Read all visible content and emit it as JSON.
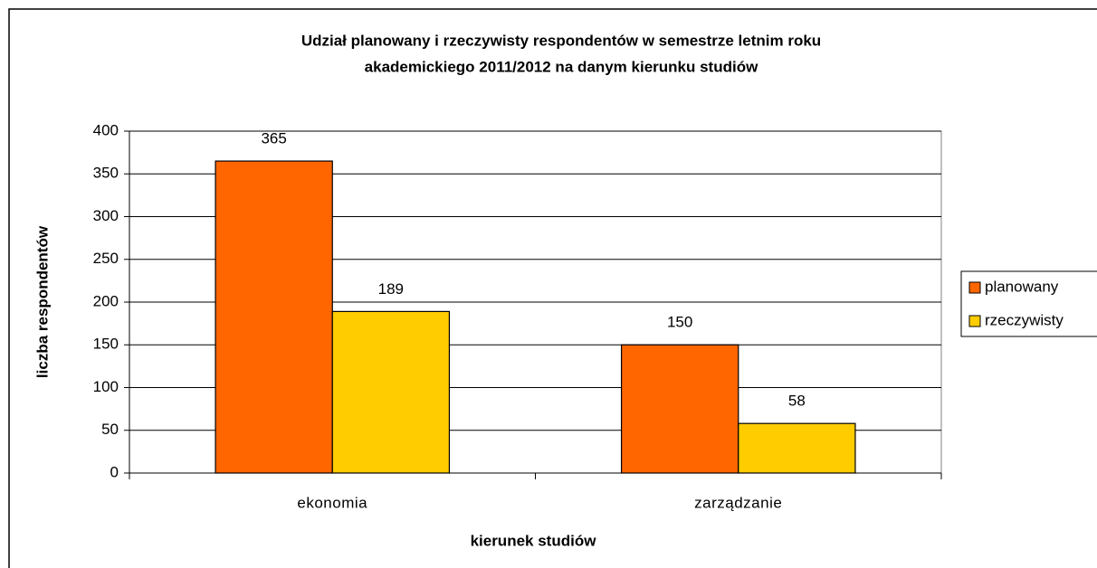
{
  "chart_data": {
    "type": "bar",
    "title": [
      "Udział planowany i rzeczywisty respondentów w semestrze letnim roku",
      "akademickiego 2011/2012 na danym kierunku studiów"
    ],
    "x_label": "kierunek studiów",
    "y_label": "liczba respondentów",
    "categories": [
      "ekonomia",
      "zarządzanie"
    ],
    "series": [
      {
        "name": "planowany",
        "color": "#ff6600",
        "values": [
          365,
          150
        ]
      },
      {
        "name": "rzeczywisty",
        "color": "#ffcc00",
        "values": [
          189,
          58
        ]
      }
    ],
    "ylim": [
      0,
      400
    ],
    "yticks": [
      0,
      50,
      100,
      150,
      200,
      250,
      300,
      350,
      400
    ],
    "grid": true,
    "legend": "right"
  }
}
